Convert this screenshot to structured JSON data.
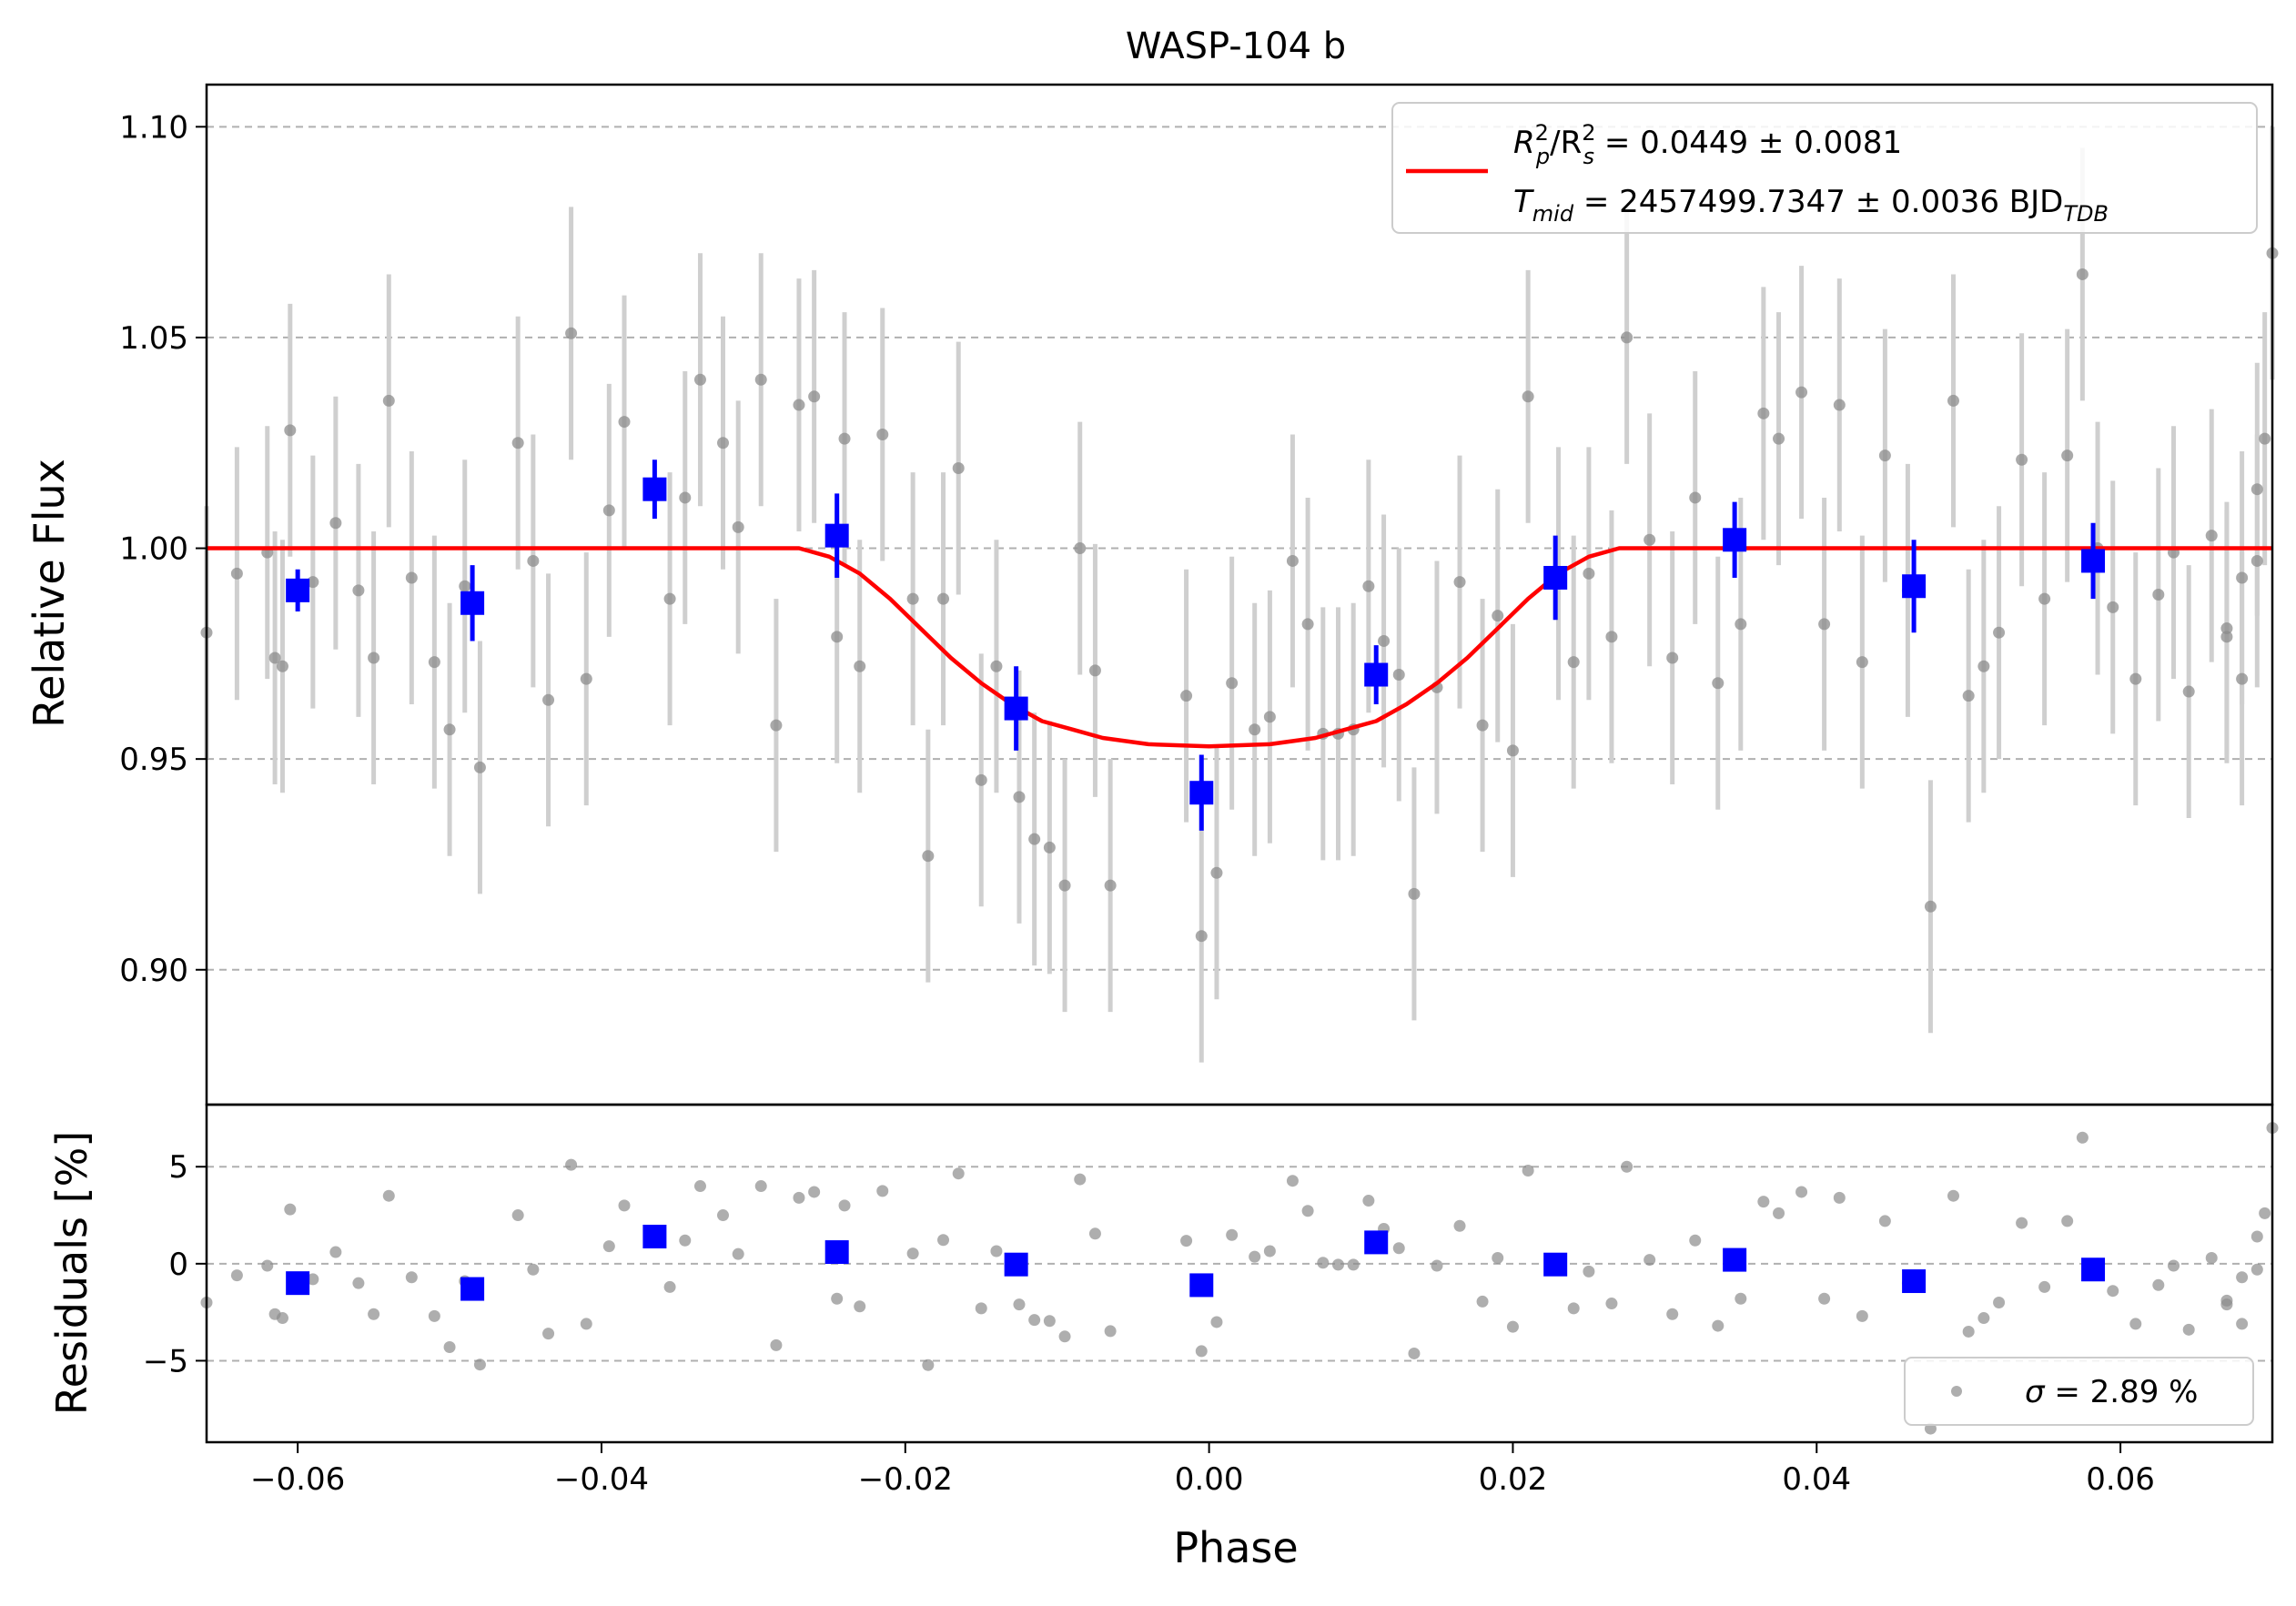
{
  "chart_data": {
    "type": "scatter",
    "title": "WASP-104 b",
    "xlabel": "Phase",
    "xlim": [
      -0.066,
      0.07
    ],
    "xticks": [
      -0.06,
      -0.04,
      -0.02,
      0.0,
      0.02,
      0.04,
      0.06
    ],
    "xtick_labels": [
      "−0.06",
      "−0.04",
      "−0.02",
      "0.00",
      "0.02",
      "0.04",
      "0.06"
    ],
    "grid": true,
    "main": {
      "ylabel": "Relative Flux",
      "ylim": [
        0.868,
        1.11
      ],
      "yticks": [
        0.9,
        0.95,
        1.0,
        1.05,
        1.1
      ],
      "ytick_labels": [
        "0.90",
        "0.95",
        "1.00",
        "1.05",
        "1.10"
      ],
      "data_errorbar": 0.03,
      "data_points": [
        [
          -0.066,
          0.98
        ],
        [
          -0.064,
          0.994
        ],
        [
          -0.062,
          0.999
        ],
        [
          -0.0615,
          0.974
        ],
        [
          -0.061,
          0.972
        ],
        [
          -0.0605,
          1.028
        ],
        [
          -0.059,
          0.992
        ],
        [
          -0.0575,
          1.006
        ],
        [
          -0.056,
          0.99
        ],
        [
          -0.055,
          0.974
        ],
        [
          -0.054,
          1.035
        ],
        [
          -0.0525,
          0.993
        ],
        [
          -0.051,
          0.973
        ],
        [
          -0.05,
          0.957
        ],
        [
          -0.049,
          0.991
        ],
        [
          -0.048,
          0.948
        ],
        [
          -0.0455,
          1.025
        ],
        [
          -0.0445,
          0.997
        ],
        [
          -0.0435,
          0.964
        ],
        [
          -0.042,
          1.051
        ],
        [
          -0.041,
          0.969
        ],
        [
          -0.0395,
          1.009
        ],
        [
          -0.0385,
          1.03
        ],
        [
          -0.0355,
          0.988
        ],
        [
          -0.0345,
          1.012
        ],
        [
          -0.0335,
          1.04
        ],
        [
          -0.032,
          1.025
        ],
        [
          -0.031,
          1.005
        ],
        [
          -0.0295,
          1.04
        ],
        [
          -0.0285,
          0.958
        ],
        [
          -0.027,
          1.034
        ],
        [
          -0.026,
          1.036
        ],
        [
          -0.0245,
          0.979
        ],
        [
          -0.024,
          1.026
        ],
        [
          -0.023,
          0.972
        ],
        [
          -0.0215,
          1.027
        ],
        [
          -0.0195,
          0.988
        ],
        [
          -0.0185,
          0.927
        ],
        [
          -0.0175,
          0.988
        ],
        [
          -0.0165,
          1.019
        ],
        [
          -0.015,
          0.945
        ],
        [
          -0.014,
          0.972
        ],
        [
          -0.0125,
          0.941
        ],
        [
          -0.0115,
          0.931
        ],
        [
          -0.0105,
          0.929
        ],
        [
          -0.0095,
          0.92
        ],
        [
          -0.0085,
          1.0
        ],
        [
          -0.0075,
          0.971
        ],
        [
          -0.0065,
          0.92
        ],
        [
          -0.0015,
          0.965
        ],
        [
          -0.0005,
          0.908
        ],
        [
          0.0005,
          0.923
        ],
        [
          0.0015,
          0.968
        ],
        [
          0.003,
          0.957
        ],
        [
          0.004,
          0.96
        ],
        [
          0.0055,
          0.997
        ],
        [
          0.0065,
          0.982
        ],
        [
          0.0075,
          0.956
        ],
        [
          0.0085,
          0.956
        ],
        [
          0.0095,
          0.957
        ],
        [
          0.0105,
          0.991
        ],
        [
          0.0115,
          0.978
        ],
        [
          0.0125,
          0.97
        ],
        [
          0.0135,
          0.918
        ],
        [
          0.015,
          0.967
        ],
        [
          0.0165,
          0.992
        ],
        [
          0.018,
          0.958
        ],
        [
          0.019,
          0.984
        ],
        [
          0.02,
          0.952
        ],
        [
          0.021,
          1.036
        ],
        [
          0.023,
          0.994
        ],
        [
          0.024,
          0.973
        ],
        [
          0.025,
          0.994
        ],
        [
          0.0265,
          0.979
        ],
        [
          0.0275,
          1.05
        ],
        [
          0.029,
          1.002
        ],
        [
          0.0305,
          0.974
        ],
        [
          0.032,
          1.012
        ],
        [
          0.0335,
          0.968
        ],
        [
          0.035,
          0.982
        ],
        [
          0.0365,
          1.032
        ],
        [
          0.0375,
          1.026
        ],
        [
          0.039,
          1.037
        ],
        [
          0.0405,
          0.982
        ],
        [
          0.0415,
          1.034
        ],
        [
          0.043,
          0.973
        ],
        [
          0.0445,
          1.022
        ],
        [
          0.046,
          0.99
        ],
        [
          0.0475,
          0.915
        ],
        [
          0.049,
          1.035
        ],
        [
          0.05,
          0.965
        ],
        [
          0.051,
          0.972
        ],
        [
          0.052,
          0.98
        ],
        [
          0.0535,
          1.021
        ],
        [
          0.055,
          0.988
        ],
        [
          0.0565,
          1.022
        ],
        [
          0.0575,
          1.065
        ],
        [
          0.0585,
          1.0
        ],
        [
          0.0595,
          0.986
        ],
        [
          0.061,
          0.969
        ],
        [
          0.0625,
          0.989
        ],
        [
          0.0635,
          0.999
        ],
        [
          0.0645,
          0.966
        ],
        [
          0.066,
          1.003
        ],
        [
          0.067,
          0.981
        ],
        [
          0.068,
          0.993
        ],
        [
          0.069,
          1.014
        ],
        [
          0.0695,
          1.026
        ],
        [
          0.067,
          0.979
        ],
        [
          0.068,
          0.969
        ],
        [
          0.069,
          0.997
        ],
        [
          0.07,
          1.07
        ]
      ],
      "binned_points": [
        [
          -0.06,
          0.99,
          0.005
        ],
        [
          -0.0485,
          0.987,
          0.009
        ],
        [
          -0.0365,
          1.014,
          0.007
        ],
        [
          -0.0245,
          1.003,
          0.01
        ],
        [
          -0.0127,
          0.962,
          0.01
        ],
        [
          -0.0005,
          0.942,
          0.009
        ],
        [
          0.011,
          0.97,
          0.007
        ],
        [
          0.0228,
          0.993,
          0.01
        ],
        [
          0.0346,
          1.002,
          0.009
        ],
        [
          0.0464,
          0.991,
          0.011
        ],
        [
          0.0582,
          0.997,
          0.009
        ]
      ],
      "model": [
        [
          -0.066,
          1.0
        ],
        [
          -0.027,
          1.0
        ],
        [
          -0.025,
          0.998
        ],
        [
          -0.023,
          0.994
        ],
        [
          -0.021,
          0.988
        ],
        [
          -0.019,
          0.981
        ],
        [
          -0.017,
          0.974
        ],
        [
          -0.015,
          0.968
        ],
        [
          -0.013,
          0.963
        ],
        [
          -0.011,
          0.959
        ],
        [
          -0.009,
          0.957
        ],
        [
          -0.007,
          0.955
        ],
        [
          -0.004,
          0.9535
        ],
        [
          0.0,
          0.953
        ],
        [
          0.004,
          0.9535
        ],
        [
          0.007,
          0.955
        ],
        [
          0.009,
          0.957
        ],
        [
          0.011,
          0.959
        ],
        [
          0.013,
          0.963
        ],
        [
          0.015,
          0.968
        ],
        [
          0.017,
          0.974
        ],
        [
          0.019,
          0.981
        ],
        [
          0.021,
          0.988
        ],
        [
          0.023,
          0.994
        ],
        [
          0.025,
          0.998
        ],
        [
          0.027,
          1.0
        ],
        [
          0.07,
          1.0
        ]
      ],
      "legend": {
        "placement": "upper right",
        "line1_a": "R",
        "line1_b": "2",
        "line1_c": "p",
        "line1_d": "/R",
        "line1_e": "2",
        "line1_f": "s",
        "line1_rest": " = 0.0449 ± 0.0081",
        "line2_a": "T",
        "line2_b": "mid",
        "line2_rest": " = 2457499.7347 ± 0.0036 BJD",
        "line2_sub": "TDB"
      }
    },
    "residuals": {
      "ylabel": "Residuals [%]",
      "ylim": [
        -9.2,
        8.2
      ],
      "yticks": [
        -5,
        0,
        5
      ],
      "ytick_labels": [
        "−5",
        "0",
        "5"
      ],
      "legend": {
        "placement": "lower right",
        "prefix": "σ",
        "text": " = 2.89 %"
      }
    },
    "colors": {
      "data": "#8c8c8c",
      "errorbar": "#cfcfcf",
      "binned": "#0000ff",
      "model": "#ff0000",
      "grid": "#b0b0b0"
    }
  }
}
